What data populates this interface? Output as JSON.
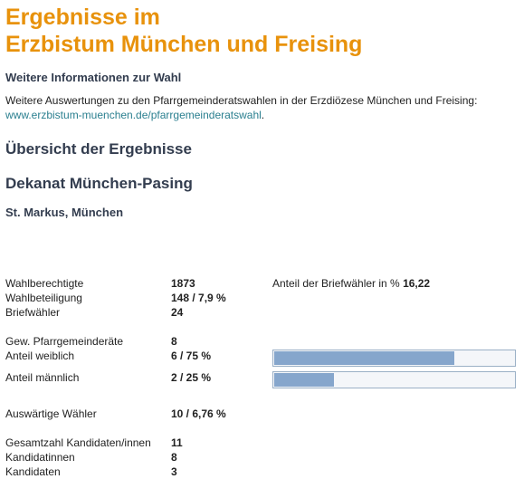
{
  "header": {
    "title_lines": [
      "Ergebnisse im",
      "Erzbistum München und Freising"
    ]
  },
  "info": {
    "heading": "Weitere Informationen zur Wahl",
    "text": "Weitere Auswertungen zu den Pfarrgemeinderatswahlen in der Erzdiözese München und Freising:",
    "link": "www.erzbistum-muenchen.de/pfarrgemeinderatswahl",
    "link_suffix": "."
  },
  "overview": {
    "heading": "Übersicht der Ergebnisse",
    "deanery": "Dekanat München-Pasing",
    "parish": "St. Markus, München"
  },
  "side_stat": {
    "label": "Anteil der Briefwähler in %",
    "value": "16,22"
  },
  "stats": [
    [
      {
        "label": "Wahlberechtigte",
        "value": "1873"
      },
      {
        "label": "Wahlbeteiligung",
        "value": "148 / 7,9 %"
      },
      {
        "label": "Briefwähler",
        "value": "24"
      }
    ],
    [
      {
        "label": "Gew. Pfarrgemeinderäte",
        "value": "8"
      },
      {
        "label": "Anteil weiblich",
        "value": "6 / 75 %",
        "bar": 75
      },
      {
        "label": "Anteil männlich",
        "value": "2 / 25 %",
        "bar": 25
      }
    ],
    [
      {
        "label": "Auswärtige Wähler",
        "value": "10 / 6,76 %"
      }
    ],
    [
      {
        "label": "Gesamtzahl Kandidaten/innen",
        "value": "11"
      },
      {
        "label": "Kandidatinnen",
        "value": "8"
      },
      {
        "label": "Kandidaten",
        "value": "3"
      }
    ]
  ]
}
